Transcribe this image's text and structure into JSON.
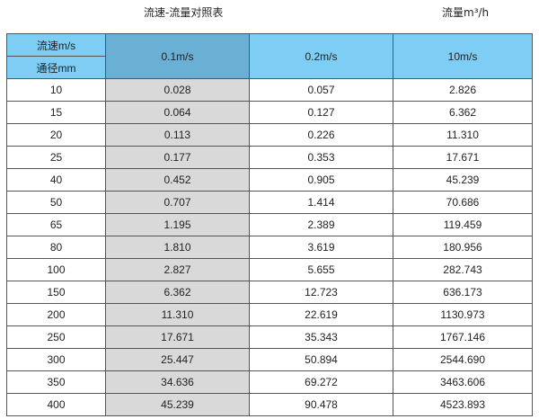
{
  "titles": {
    "main": "流速-流量对照表",
    "unit": "流量m³/h"
  },
  "header": {
    "velocity_label": "流速m/s",
    "diameter_label": "通径mm",
    "cols": [
      "0.1m/s",
      "0.2m/s",
      "10m/s"
    ]
  },
  "colors": {
    "header": "#7dcdf4",
    "header_highlight": "#6aafd4",
    "highlight_column": "#d9d9d9"
  },
  "rows": [
    [
      "10",
      "0.028",
      "0.057",
      "2.826"
    ],
    [
      "15",
      "0.064",
      "0.127",
      "6.362"
    ],
    [
      "20",
      "0.113",
      "0.226",
      "11.310"
    ],
    [
      "25",
      "0.177",
      "0.353",
      "17.671"
    ],
    [
      "40",
      "0.452",
      "0.905",
      "45.239"
    ],
    [
      "50",
      "0.707",
      "1.414",
      "70.686"
    ],
    [
      "65",
      "1.195",
      "2.389",
      "119.459"
    ],
    [
      "80",
      "1.810",
      "3.619",
      "180.956"
    ],
    [
      "100",
      "2.827",
      "5.655",
      "282.743"
    ],
    [
      "150",
      "6.362",
      "12.723",
      "636.173"
    ],
    [
      "200",
      "11.310",
      "22.619",
      "1130.973"
    ],
    [
      "250",
      "17.671",
      "35.343",
      "1767.146"
    ],
    [
      "300",
      "25.447",
      "50.894",
      "2544.690"
    ],
    [
      "350",
      "34.636",
      "69.272",
      "3463.606"
    ],
    [
      "400",
      "45.239",
      "90.478",
      "4523.893"
    ]
  ]
}
